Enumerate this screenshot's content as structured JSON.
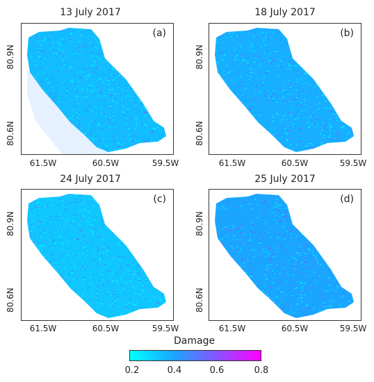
{
  "panels": [
    {
      "title": "13 July 2017",
      "label": "(a)",
      "y_ticks": [
        "80.9N",
        "80.6N"
      ],
      "x_ticks": [
        "61.5W",
        "60.5W",
        "59.5W"
      ],
      "mean_damage": 0.35,
      "spill": true
    },
    {
      "title": "18 July 2017",
      "label": "(b)",
      "y_ticks": [
        "80.9N",
        "80.6N"
      ],
      "x_ticks": [
        "61.5W",
        "60.5W",
        "59.5W"
      ],
      "mean_damage": 0.38,
      "spill": false
    },
    {
      "title": "24 July 2017",
      "label": "(c)",
      "y_ticks": [
        "80.9N",
        "80.6N"
      ],
      "x_ticks": [
        "61.5W",
        "60.5W",
        "59.5W"
      ],
      "mean_damage": 0.33,
      "spill": false
    },
    {
      "title": "25 July 2017",
      "label": "(d)",
      "y_ticks": [
        "80.9N",
        "80.6N"
      ],
      "x_ticks": [
        "61.5W",
        "60.5W",
        "59.5W"
      ],
      "mean_damage": 0.4,
      "spill": false
    }
  ],
  "colorbar": {
    "title": "Damage",
    "ticks": [
      "0.2",
      "0.4",
      "0.6",
      "0.8"
    ],
    "colors": [
      "#00ffff",
      "#1aa6ff",
      "#8a52ff",
      "#ff00ff"
    ]
  }
}
